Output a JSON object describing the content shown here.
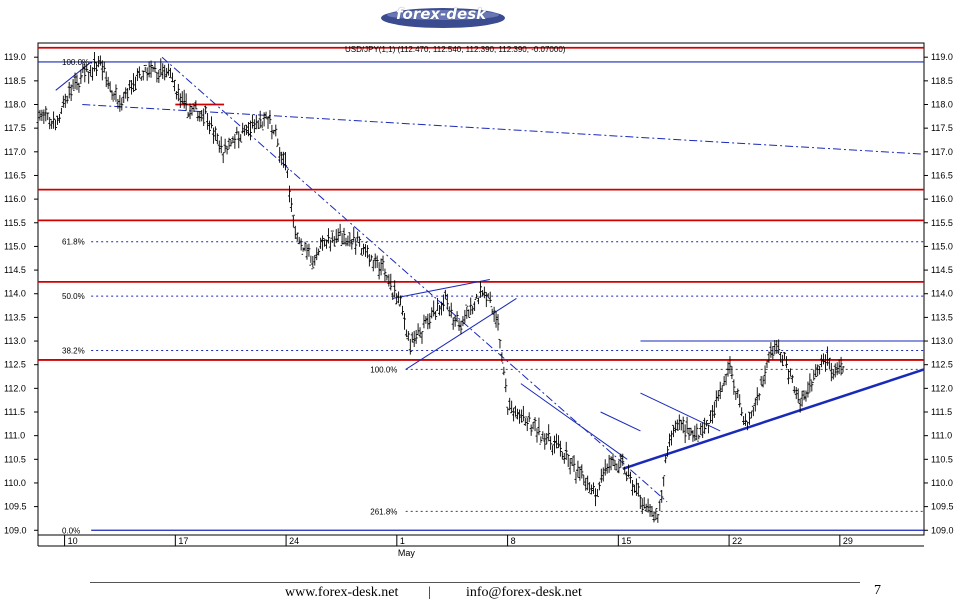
{
  "header": {
    "logo_text": "forex-desk"
  },
  "footer": {
    "website": "www.forex-desk.net",
    "separator": "|",
    "email": "info@forex-desk.net",
    "page_number": "7"
  },
  "chart_data": {
    "type": "ohlc",
    "title": "USD/JPY(1,1) (112.470, 112.540, 112.390, 112.390, -0.07000)",
    "ylim": [
      108.9,
      119.3
    ],
    "xlim": [
      0,
      100
    ],
    "y_ticks": [
      "109.0",
      "109.5",
      "110.0",
      "110.5",
      "111.0",
      "111.5",
      "112.0",
      "112.5",
      "113.0",
      "113.5",
      "114.0",
      "114.5",
      "115.0",
      "115.5",
      "116.0",
      "116.5",
      "117.0",
      "117.5",
      "118.0",
      "118.5",
      "119.0"
    ],
    "x_ticks": [
      {
        "label": "10",
        "x": 3
      },
      {
        "label": "17",
        "x": 15.5
      },
      {
        "label": "24",
        "x": 28
      },
      {
        "label": "1",
        "x": 40.5
      },
      {
        "label": "8",
        "x": 53
      },
      {
        "label": "15",
        "x": 65.5
      },
      {
        "label": "22",
        "x": 78
      },
      {
        "label": "29",
        "x": 90.5
      }
    ],
    "month_label": {
      "label": "May",
      "x": 40.5
    },
    "anchors": [
      [
        0,
        117.8
      ],
      [
        2,
        117.6
      ],
      [
        3,
        118.1
      ],
      [
        5,
        118.6
      ],
      [
        7,
        118.9
      ],
      [
        8,
        118.4
      ],
      [
        9,
        118.1
      ],
      [
        11,
        118.5
      ],
      [
        13,
        118.7
      ],
      [
        15,
        118.6
      ],
      [
        16,
        118.1
      ],
      [
        17,
        117.9
      ],
      [
        19,
        117.8
      ],
      [
        20,
        117.3
      ],
      [
        21,
        117.0
      ],
      [
        22,
        117.3
      ],
      [
        24,
        117.5
      ],
      [
        26,
        117.7
      ],
      [
        27,
        117.2
      ],
      [
        28,
        116.7
      ],
      [
        28.5,
        115.9
      ],
      [
        29,
        115.3
      ],
      [
        31,
        114.7
      ],
      [
        33,
        115.2
      ],
      [
        35,
        115.2
      ],
      [
        37,
        114.9
      ],
      [
        39,
        114.5
      ],
      [
        41,
        113.7
      ],
      [
        42,
        112.9
      ],
      [
        44,
        113.4
      ],
      [
        46,
        113.9
      ],
      [
        47,
        113.3
      ],
      [
        49,
        113.7
      ],
      [
        50,
        114.1
      ],
      [
        51,
        113.9
      ],
      [
        52,
        113.3
      ],
      [
        52.5,
        112.4
      ],
      [
        53,
        111.6
      ],
      [
        55,
        111.3
      ],
      [
        57,
        111.0
      ],
      [
        59,
        110.7
      ],
      [
        61,
        110.2
      ],
      [
        63,
        109.8
      ],
      [
        64,
        110.3
      ],
      [
        66,
        110.4
      ],
      [
        67,
        110.0
      ],
      [
        69,
        109.4
      ],
      [
        70,
        109.2
      ],
      [
        71,
        110.7
      ],
      [
        72,
        111.3
      ],
      [
        74,
        111.0
      ],
      [
        76,
        111.3
      ],
      [
        77,
        112.0
      ],
      [
        78,
        112.5
      ],
      [
        79,
        111.8
      ],
      [
        80,
        111.2
      ],
      [
        81,
        111.7
      ],
      [
        82,
        112.3
      ],
      [
        83,
        112.9
      ],
      [
        84,
        112.7
      ],
      [
        85,
        112.2
      ],
      [
        86,
        111.7
      ],
      [
        87,
        112.0
      ],
      [
        88,
        112.5
      ],
      [
        89,
        112.6
      ],
      [
        90,
        112.3
      ],
      [
        91,
        112.4
      ]
    ],
    "horizontal_levels": [
      {
        "y": 119.2,
        "color": "#d00000"
      },
      {
        "y": 118.0,
        "color": "#d00000",
        "x": [
          15.5,
          21
        ]
      },
      {
        "y": 116.2,
        "color": "#d00000"
      },
      {
        "y": 115.55,
        "color": "#d00000"
      },
      {
        "y": 114.25,
        "color": "#d00000"
      },
      {
        "y": 112.6,
        "color": "#d00000"
      },
      {
        "y": 118.9,
        "color": "#1a2ab8"
      },
      {
        "y": 109.0,
        "color": "#1a2ab8",
        "x": [
          6,
          100
        ]
      }
    ],
    "fib_levels": [
      {
        "label": "100.0%",
        "y": 118.9
      },
      {
        "label": "61.8%",
        "y": 115.1
      },
      {
        "label": "50.0%",
        "y": 113.95
      },
      {
        "label": "38.2%",
        "y": 112.8
      },
      {
        "label": "0.0%",
        "y": 109.0
      }
    ],
    "fib_extension": [
      {
        "label": "100.0%",
        "y": 112.4
      },
      {
        "label": "261.8%",
        "y": 109.4
      }
    ],
    "trendlines": [
      {
        "from": [
          2,
          118.3
        ],
        "to": [
          6,
          118.9
        ],
        "style": "solid"
      },
      {
        "from": [
          5,
          118.0
        ],
        "to": [
          100,
          116.95
        ],
        "style": "dashdot"
      },
      {
        "from": [
          14,
          119.0
        ],
        "to": [
          71,
          109.6
        ],
        "style": "dashdot"
      },
      {
        "from": [
          41.5,
          112.4
        ],
        "to": [
          54,
          113.9
        ],
        "style": "solid"
      },
      {
        "from": [
          40,
          113.9
        ],
        "to": [
          51,
          114.3
        ],
        "style": "solid"
      },
      {
        "from": [
          54.5,
          112.1
        ],
        "to": [
          66.5,
          110.5
        ],
        "style": "solid"
      },
      {
        "from": [
          63.5,
          111.5
        ],
        "to": [
          68,
          111.1
        ],
        "style": "solid"
      },
      {
        "from": [
          66,
          110.3
        ],
        "to": [
          100,
          112.4
        ],
        "style": "solid",
        "weight": 2.5
      },
      {
        "from": [
          68,
          113.0
        ],
        "to": [
          100,
          113.0
        ],
        "style": "solid"
      },
      {
        "from": [
          68,
          111.9
        ],
        "to": [
          77,
          111.1
        ],
        "style": "solid"
      }
    ]
  }
}
